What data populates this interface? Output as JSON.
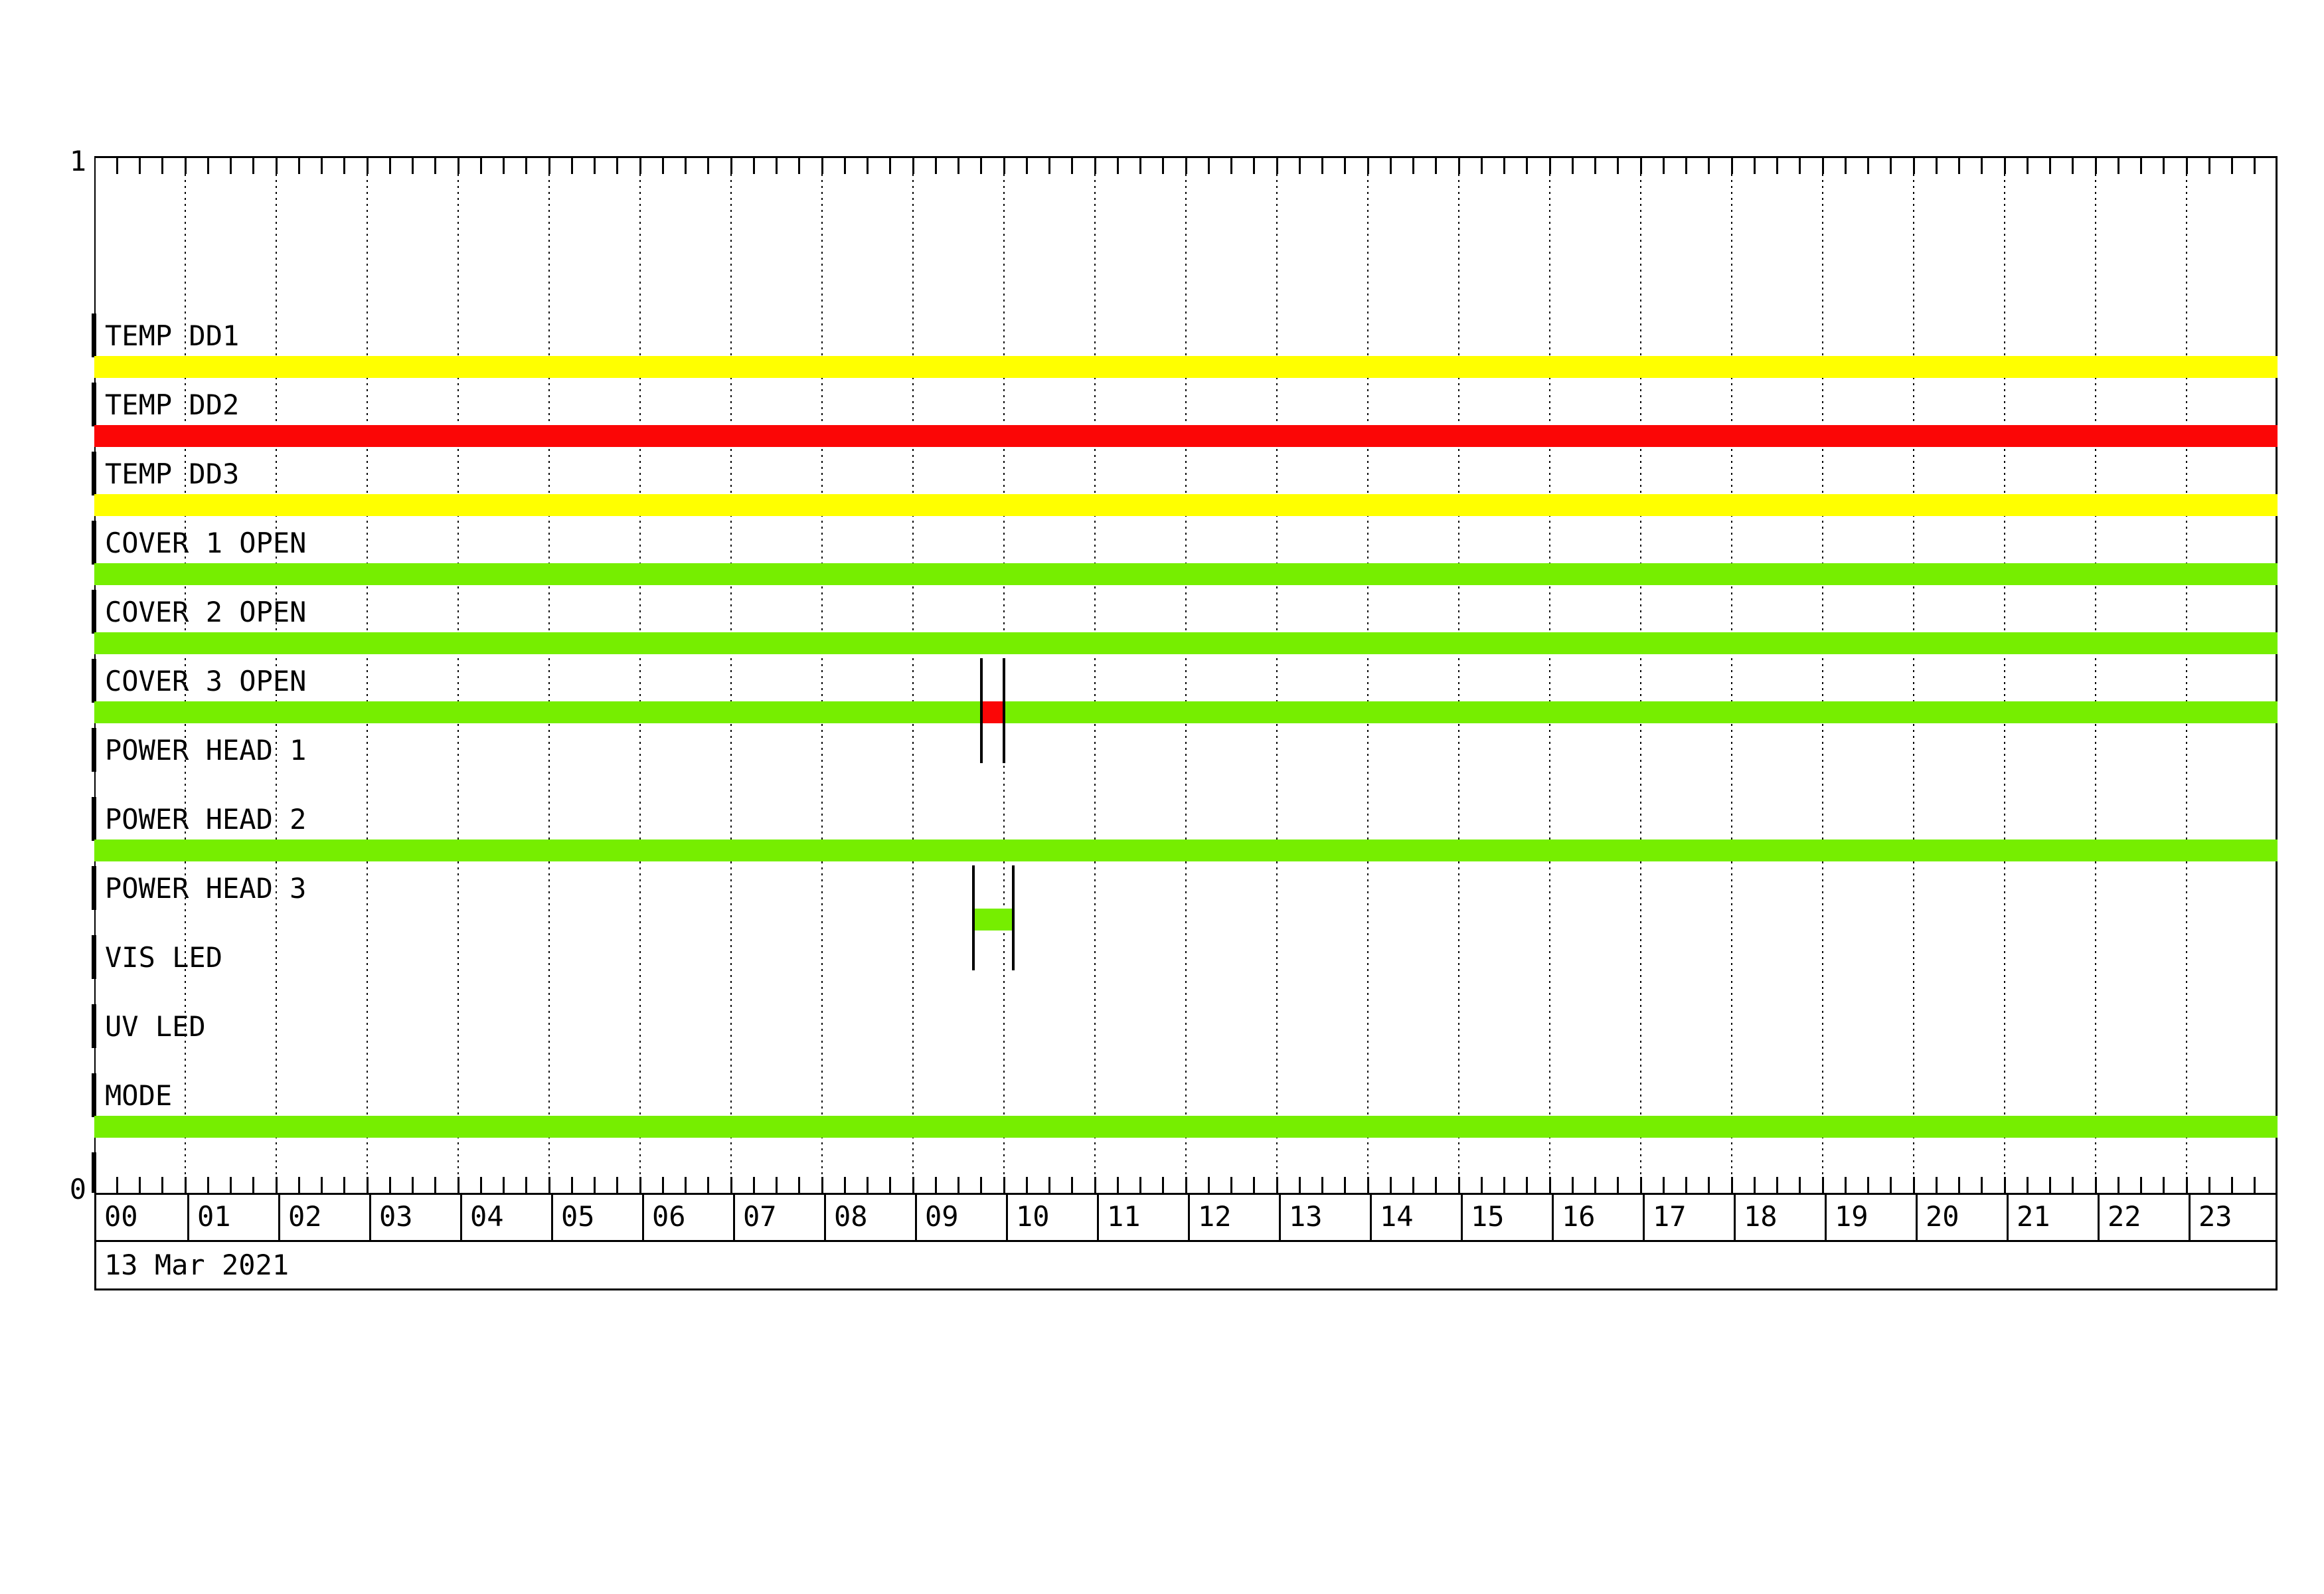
{
  "date_label": "13 Mar 2021",
  "y_axis": {
    "top_label": "1",
    "bottom_label": "0"
  },
  "colors": {
    "green": "#76ee00",
    "yellow": "#ffff00",
    "red": "#fb0606",
    "axis": "#000000"
  },
  "hours": [
    "00",
    "01",
    "02",
    "03",
    "04",
    "05",
    "06",
    "07",
    "08",
    "09",
    "10",
    "11",
    "12",
    "13",
    "14",
    "15",
    "16",
    "17",
    "18",
    "19",
    "20",
    "21",
    "22",
    "23"
  ],
  "chart_data": {
    "type": "bar",
    "variant": "timeline-status-gantt",
    "title": "",
    "date": "13 Mar 2021",
    "x_axis": {
      "unit": "hours",
      "start": "00:00",
      "end": "24:00",
      "tick_labels": [
        "00",
        "01",
        "02",
        "03",
        "04",
        "05",
        "06",
        "07",
        "08",
        "09",
        "10",
        "11",
        "12",
        "13",
        "14",
        "15",
        "16",
        "17",
        "18",
        "19",
        "20",
        "21",
        "22",
        "23"
      ],
      "minor_tick_minutes": 15,
      "gridline_every_hours": 1,
      "grid_style": "dotted"
    },
    "y_axis": {
      "top_label": "1",
      "bottom_label": "0"
    },
    "legend_position": "none",
    "rows": [
      {
        "label": "TEMP DD1",
        "segments": [
          {
            "start": "00:00",
            "end": "24:00",
            "color": "yellow"
          }
        ]
      },
      {
        "label": "TEMP DD2",
        "segments": [
          {
            "start": "00:00",
            "end": "24:00",
            "color": "red"
          }
        ]
      },
      {
        "label": "TEMP DD3",
        "segments": [
          {
            "start": "00:00",
            "end": "24:00",
            "color": "yellow"
          }
        ]
      },
      {
        "label": "COVER 1 OPEN",
        "segments": [
          {
            "start": "00:00",
            "end": "24:00",
            "color": "green"
          }
        ]
      },
      {
        "label": "COVER 2 OPEN",
        "segments": [
          {
            "start": "00:00",
            "end": "24:00",
            "color": "green"
          }
        ]
      },
      {
        "label": "COVER 3 OPEN",
        "segments": [
          {
            "start": "00:00",
            "end": "09:45",
            "color": "green"
          },
          {
            "start": "09:45",
            "end": "10:00",
            "color": "red"
          },
          {
            "start": "10:00",
            "end": "24:00",
            "color": "green"
          }
        ]
      },
      {
        "label": "POWER HEAD 1",
        "segments": []
      },
      {
        "label": "POWER HEAD 2",
        "segments": [
          {
            "start": "00:00",
            "end": "24:00",
            "color": "green"
          }
        ]
      },
      {
        "label": "POWER HEAD 3",
        "segments": [
          {
            "start": "09:40",
            "end": "10:06",
            "color": "green"
          }
        ]
      },
      {
        "label": "VIS LED",
        "segments": []
      },
      {
        "label": "UV LED",
        "segments": []
      },
      {
        "label": "MODE",
        "segments": [
          {
            "start": "00:00",
            "end": "24:00",
            "color": "green"
          }
        ]
      }
    ]
  }
}
